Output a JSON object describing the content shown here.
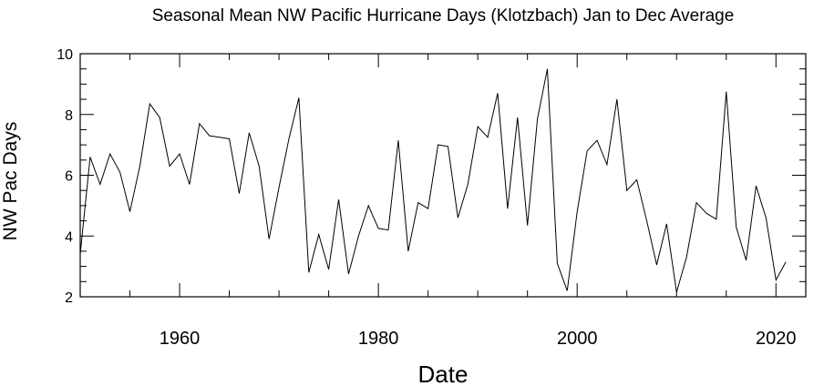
{
  "chart_data": {
    "type": "line",
    "title": "Seasonal Mean NW Pacific Hurricane Days (Klotzbach) Jan to Dec Average",
    "xlabel": "Date",
    "ylabel": "NW Pac Days",
    "xlim": [
      1950,
      2023
    ],
    "ylim": [
      2,
      10
    ],
    "x_ticks": [
      1960,
      1980,
      2000,
      2020
    ],
    "y_ticks": [
      2,
      4,
      6,
      8,
      10
    ],
    "x_tick_labels": [
      "1960",
      "1980",
      "2000",
      "2020"
    ],
    "y_tick_labels": [
      "2",
      "4",
      "6",
      "8",
      "10"
    ],
    "grid": false,
    "series": [
      {
        "color": "#000000",
        "x": [
          1950,
          1951,
          1952,
          1953,
          1954,
          1955,
          1956,
          1957,
          1958,
          1959,
          1960,
          1961,
          1962,
          1963,
          1964,
          1965,
          1966,
          1967,
          1968,
          1969,
          1970,
          1971,
          1972,
          1973,
          1974,
          1975,
          1976,
          1977,
          1978,
          1979,
          1980,
          1981,
          1982,
          1983,
          1984,
          1985,
          1986,
          1987,
          1988,
          1989,
          1990,
          1991,
          1992,
          1993,
          1994,
          1995,
          1996,
          1997,
          1998,
          1999,
          2000,
          2001,
          2002,
          2003,
          2004,
          2005,
          2006,
          2007,
          2008,
          2009,
          2010,
          2011,
          2012,
          2013,
          2014,
          2015,
          2016,
          2017,
          2018,
          2019,
          2020,
          2021
        ],
        "y": [
          3.4,
          6.6,
          5.7,
          6.7,
          6.1,
          4.8,
          6.3,
          8.35,
          7.9,
          6.3,
          6.7,
          5.7,
          7.7,
          7.3,
          7.25,
          7.2,
          5.4,
          7.4,
          6.3,
          3.9,
          5.6,
          7.2,
          8.55,
          2.8,
          4.05,
          2.9,
          5.2,
          2.75,
          4.0,
          5.0,
          4.25,
          4.2,
          7.15,
          3.5,
          5.1,
          4.9,
          7.0,
          6.95,
          4.6,
          5.7,
          7.6,
          7.25,
          8.7,
          4.9,
          7.9,
          4.35,
          7.85,
          9.5,
          3.1,
          2.2,
          4.8,
          6.8,
          7.15,
          6.35,
          8.5,
          5.5,
          5.85,
          4.5,
          3.05,
          4.4,
          2.15,
          3.3,
          5.1,
          4.75,
          4.55,
          8.75,
          4.3,
          3.2,
          5.65,
          4.6,
          2.55,
          3.15
        ]
      }
    ]
  }
}
